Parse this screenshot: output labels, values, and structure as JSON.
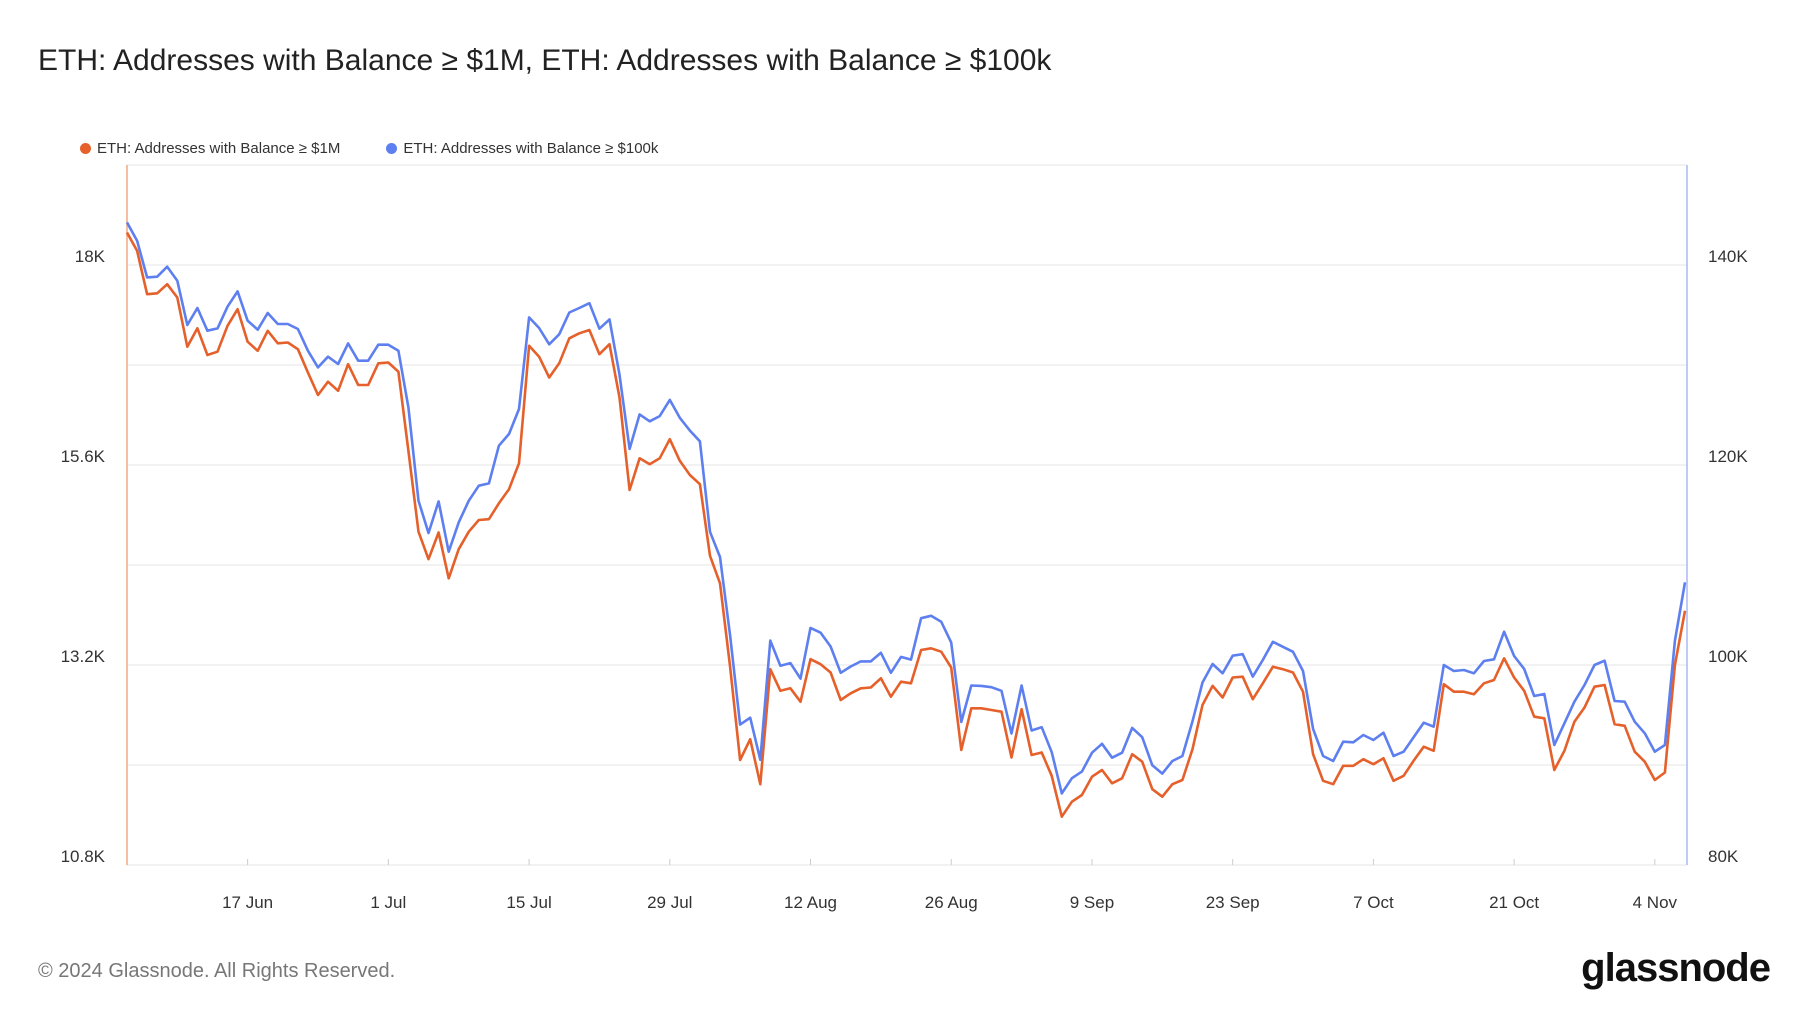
{
  "title": "ETH: Addresses with Balance ≥ $1M, ETH: Addresses with Balance ≥ $100k",
  "footer": "© 2024 Glassnode. All Rights Reserved.",
  "logo": "glassnode",
  "colors": {
    "series_1m": "#E5602A",
    "series_100k": "#5E7FEF",
    "grid": "#e6e6e6"
  },
  "chart_data": {
    "type": "line",
    "title": "ETH: Addresses with Balance ≥ $1M, ETH: Addresses with Balance ≥ $100k",
    "legend_position": "top-left",
    "grid": true,
    "y_left": {
      "ylim": [
        10800,
        19200
      ],
      "ticks": [
        10800,
        13200,
        15600,
        18000
      ],
      "tick_labels": [
        "10.8K",
        "13.2K",
        "15.6K",
        "18K"
      ],
      "gridlines": [
        10800,
        12000,
        13200,
        14400,
        15600,
        16800,
        18000
      ]
    },
    "y_right": {
      "ylim": [
        80000,
        150000
      ],
      "ticks": [
        80000,
        100000,
        120000,
        140000
      ],
      "tick_labels": [
        "80K",
        "100K",
        "120K",
        "140K"
      ]
    },
    "x_ticks": [
      {
        "date": "2024-06-17",
        "label": "17 Jun"
      },
      {
        "date": "2024-07-01",
        "label": "1 Jul"
      },
      {
        "date": "2024-07-15",
        "label": "15 Jul"
      },
      {
        "date": "2024-07-29",
        "label": "29 Jul"
      },
      {
        "date": "2024-08-12",
        "label": "12 Aug"
      },
      {
        "date": "2024-08-26",
        "label": "26 Aug"
      },
      {
        "date": "2024-09-09",
        "label": "9 Sep"
      },
      {
        "date": "2024-09-23",
        "label": "23 Sep"
      },
      {
        "date": "2024-10-07",
        "label": "7 Oct"
      },
      {
        "date": "2024-10-21",
        "label": "21 Oct"
      },
      {
        "date": "2024-11-04",
        "label": "4 Nov"
      }
    ],
    "x": [
      "2024-06-05",
      "2024-06-06",
      "2024-06-07",
      "2024-06-08",
      "2024-06-09",
      "2024-06-10",
      "2024-06-11",
      "2024-06-12",
      "2024-06-13",
      "2024-06-14",
      "2024-06-15",
      "2024-06-16",
      "2024-06-17",
      "2024-06-18",
      "2024-06-19",
      "2024-06-20",
      "2024-06-21",
      "2024-06-22",
      "2024-06-23",
      "2024-06-24",
      "2024-06-25",
      "2024-06-26",
      "2024-06-27",
      "2024-06-28",
      "2024-06-29",
      "2024-06-30",
      "2024-07-01",
      "2024-07-02",
      "2024-07-03",
      "2024-07-04",
      "2024-07-05",
      "2024-07-06",
      "2024-07-07",
      "2024-07-08",
      "2024-07-09",
      "2024-07-10",
      "2024-07-11",
      "2024-07-12",
      "2024-07-13",
      "2024-07-14",
      "2024-07-15",
      "2024-07-16",
      "2024-07-17",
      "2024-07-18",
      "2024-07-19",
      "2024-07-20",
      "2024-07-21",
      "2024-07-22",
      "2024-07-23",
      "2024-07-24",
      "2024-07-25",
      "2024-07-26",
      "2024-07-27",
      "2024-07-28",
      "2024-07-29",
      "2024-07-30",
      "2024-07-31",
      "2024-08-01",
      "2024-08-02",
      "2024-08-03",
      "2024-08-04",
      "2024-08-05",
      "2024-08-06",
      "2024-08-07",
      "2024-08-08",
      "2024-08-09",
      "2024-08-10",
      "2024-08-11",
      "2024-08-12",
      "2024-08-13",
      "2024-08-14",
      "2024-08-15",
      "2024-08-16",
      "2024-08-17",
      "2024-08-18",
      "2024-08-19",
      "2024-08-20",
      "2024-08-21",
      "2024-08-22",
      "2024-08-23",
      "2024-08-24",
      "2024-08-25",
      "2024-08-26",
      "2024-08-27",
      "2024-08-28",
      "2024-08-29",
      "2024-08-30",
      "2024-08-31",
      "2024-09-01",
      "2024-09-02",
      "2024-09-03",
      "2024-09-04",
      "2024-09-05",
      "2024-09-06",
      "2024-09-07",
      "2024-09-08",
      "2024-09-09",
      "2024-09-10",
      "2024-09-11",
      "2024-09-12",
      "2024-09-13",
      "2024-09-14",
      "2024-09-15",
      "2024-09-16",
      "2024-09-17",
      "2024-09-18",
      "2024-09-19",
      "2024-09-20",
      "2024-09-21",
      "2024-09-22",
      "2024-09-23",
      "2024-09-24",
      "2024-09-25",
      "2024-09-26",
      "2024-09-27",
      "2024-09-28",
      "2024-09-29",
      "2024-09-30",
      "2024-10-01",
      "2024-10-02",
      "2024-10-03",
      "2024-10-04",
      "2024-10-05",
      "2024-10-06",
      "2024-10-07",
      "2024-10-08",
      "2024-10-09",
      "2024-10-10",
      "2024-10-11",
      "2024-10-12",
      "2024-10-13",
      "2024-10-14",
      "2024-10-15",
      "2024-10-16",
      "2024-10-17",
      "2024-10-18",
      "2024-10-19",
      "2024-10-20",
      "2024-10-21",
      "2024-10-22",
      "2024-10-23",
      "2024-10-24",
      "2024-10-25",
      "2024-10-26",
      "2024-10-27",
      "2024-10-28",
      "2024-10-29",
      "2024-10-30",
      "2024-10-31",
      "2024-11-01",
      "2024-11-02",
      "2024-11-03",
      "2024-11-04",
      "2024-11-05",
      "2024-11-06",
      "2024-11-07"
    ],
    "series": [
      {
        "name": "ETH: Addresses with Balance ≥ $1M",
        "axis": "left",
        "color": "#E5602A",
        "values": [
          18390,
          18170,
          17650,
          17660,
          17770,
          17610,
          17020,
          17240,
          16920,
          16960,
          17270,
          17470,
          17080,
          16970,
          17210,
          17060,
          17070,
          16990,
          16710,
          16440,
          16600,
          16490,
          16810,
          16560,
          16560,
          16820,
          16830,
          16720,
          15770,
          14800,
          14470,
          14790,
          14240,
          14590,
          14800,
          14940,
          14950,
          15140,
          15310,
          15620,
          17030,
          16900,
          16650,
          16820,
          17120,
          17180,
          17220,
          16930,
          17050,
          16410,
          15300,
          15680,
          15610,
          15680,
          15910,
          15650,
          15480,
          15370,
          14510,
          14180,
          13180,
          12060,
          12310,
          11770,
          13150,
          12890,
          12920,
          12760,
          13270,
          13210,
          13110,
          12780,
          12860,
          12920,
          12930,
          13040,
          12820,
          13000,
          12980,
          13380,
          13400,
          13360,
          13170,
          12180,
          12680,
          12680,
          12660,
          12640,
          12090,
          12670,
          12120,
          12150,
          11870,
          11380,
          11560,
          11640,
          11860,
          11940,
          11780,
          11840,
          12130,
          12040,
          11710,
          11620,
          11770,
          11820,
          12190,
          12720,
          12950,
          12810,
          13050,
          13060,
          12790,
          12980,
          13180,
          13150,
          13110,
          12880,
          12130,
          11810,
          11770,
          11990,
          11990,
          12070,
          12010,
          12080,
          11810,
          11870,
          12050,
          12220,
          12170,
          12970,
          12880,
          12880,
          12850,
          12980,
          13020,
          13280,
          13050,
          12890,
          12580,
          12560,
          11940,
          12170,
          12520,
          12690,
          12940,
          12960,
          12490,
          12470,
          12160,
          12040,
          11820,
          11910,
          13200,
          13850
        ]
      },
      {
        "name": "ETH: Addresses with Balance ≥ $100k",
        "axis": "right",
        "color": "#5E7FEF",
        "values": [
          144260,
          142430,
          138760,
          138830,
          139830,
          138430,
          134000,
          135700,
          133430,
          133660,
          135830,
          137360,
          134430,
          133530,
          135200,
          134100,
          134100,
          133600,
          131430,
          129760,
          130830,
          130100,
          132160,
          130430,
          130430,
          132030,
          132030,
          131430,
          125760,
          116430,
          113200,
          116360,
          111330,
          114260,
          116430,
          117930,
          118160,
          121930,
          123100,
          125600,
          134760,
          133700,
          132070,
          133070,
          135250,
          135700,
          136180,
          133630,
          134560,
          129030,
          121600,
          125060,
          124370,
          124890,
          126510,
          124720,
          123440,
          122370,
          113320,
          110800,
          102960,
          94040,
          94730,
          90520,
          102440,
          99920,
          100190,
          98640,
          103710,
          103230,
          101850,
          99220,
          99850,
          100360,
          100360,
          101220,
          99220,
          100810,
          100540,
          104680,
          104920,
          104330,
          102250,
          94310,
          97950,
          97910,
          97780,
          97420,
          93150,
          97950,
          93450,
          93780,
          91290,
          87160,
          88680,
          89340,
          91230,
          92120,
          90730,
          91230,
          93710,
          92780,
          89970,
          89140,
          90400,
          90900,
          94370,
          98250,
          100100,
          99170,
          100930,
          101090,
          98840,
          100500,
          102320,
          101820,
          101320,
          99400,
          93610,
          90900,
          90400,
          92330,
          92270,
          93000,
          92500,
          93230,
          90900,
          91330,
          92770,
          94230,
          93830,
          100000,
          99400,
          99500,
          99170,
          100400,
          100570,
          103330,
          100900,
          99600,
          96900,
          97100,
          92000,
          94170,
          96330,
          98000,
          100000,
          100430,
          96400,
          96330,
          94330,
          93170,
          91330,
          92000,
          102430,
          108270
        ]
      }
    ]
  }
}
